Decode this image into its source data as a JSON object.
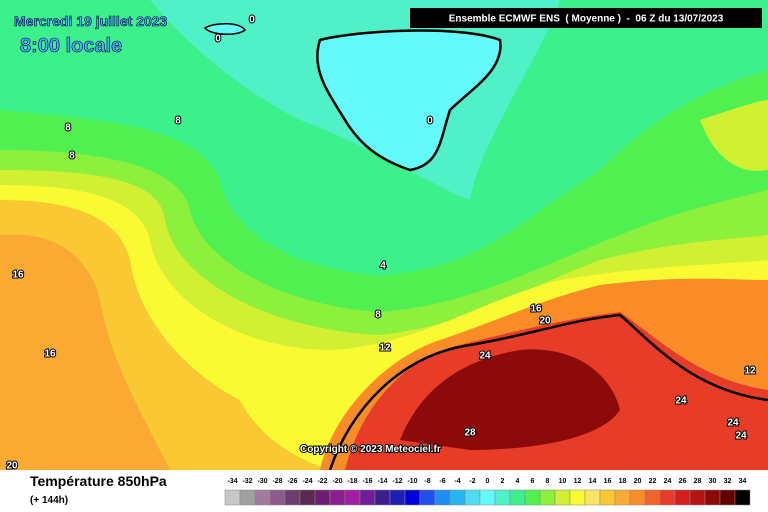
{
  "header": {
    "date": "Mercredi 19 juillet 2023",
    "time": "8:00 locale",
    "model": "Ensemble ECMWF ENS  ( Moyenne )  -  06 Z du 13/07/2023"
  },
  "contour_labels": [
    0,
    0,
    0,
    8,
    8,
    8,
    4,
    8,
    16,
    16,
    12,
    16,
    20,
    24,
    28,
    24,
    24,
    24,
    12,
    20
  ],
  "copyright": "Copyright © 2023 Meteociel.fr",
  "footer": {
    "title": "Température 850hPa",
    "subtitle": "(+ 144h)"
  },
  "legend": {
    "values": [
      -34,
      -32,
      -30,
      -28,
      -26,
      -24,
      -22,
      -20,
      -18,
      -16,
      -14,
      -12,
      -10,
      -8,
      -6,
      -4,
      -2,
      0,
      2,
      4,
      6,
      8,
      10,
      12,
      14,
      16,
      18,
      20,
      22,
      24,
      26,
      28,
      30,
      32,
      34
    ],
    "colors": [
      "#c8c8c8",
      "#a0a0a0",
      "#a07aa0",
      "#8c5a8c",
      "#6e3c6e",
      "#5a2850",
      "#6e1e6e",
      "#8c1e8c",
      "#a01ea0",
      "#6e1e96",
      "#3c1e8c",
      "#1e1eb4",
      "#0000dc",
      "#1e50f0",
      "#1e8cf0",
      "#28b4f0",
      "#50dcf0",
      "#64fafa",
      "#50f0c8",
      "#3cf08c",
      "#50f050",
      "#8cf03c",
      "#d2f032",
      "#fafa32",
      "#fae664",
      "#fac832",
      "#faaa32",
      "#fa8c28",
      "#f06428",
      "#e63c28",
      "#d21e1e",
      "#b41414",
      "#8c0a0a",
      "#640000",
      "#000000"
    ]
  }
}
